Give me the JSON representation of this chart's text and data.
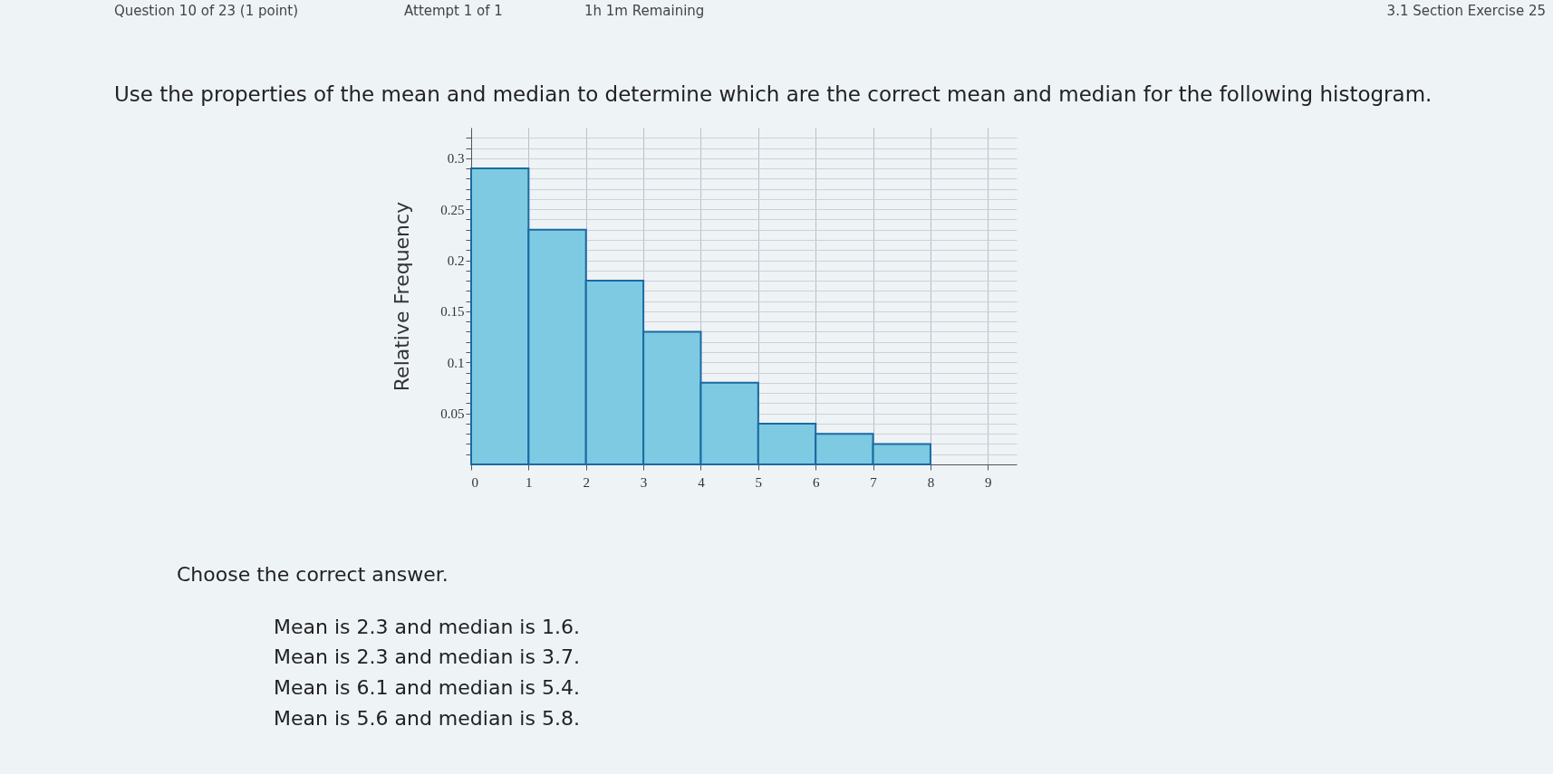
{
  "chart_data": {
    "type": "histogram",
    "title": "Use the properties of the mean and median to determine which are the correct mean and median for the following histogram.",
    "ylabel": "Relative Frequency",
    "bins": [
      0,
      1,
      2,
      3,
      4,
      5,
      6,
      7,
      8
    ],
    "values": [
      0.29,
      0.23,
      0.18,
      0.13,
      0.08,
      0.04,
      0.03,
      0.02
    ],
    "color": "#7ecae2",
    "xlim": [
      0,
      9.5
    ],
    "ylim": [
      0,
      0.33
    ],
    "xticks": [
      0,
      1,
      2,
      3,
      4,
      5,
      6,
      7,
      8,
      9
    ],
    "yticks": [
      {
        "value": 0.01,
        "label": null
      },
      {
        "value": 0.02,
        "label": null
      },
      {
        "value": 0.03,
        "label": null
      },
      {
        "value": 0.04,
        "label": null
      },
      0.05,
      {
        "value": 0.06,
        "label": null
      },
      {
        "value": 0.07,
        "label": null
      },
      {
        "value": 0.08,
        "label": null
      },
      {
        "value": 0.09,
        "label": null
      },
      0.1,
      {
        "value": 0.11,
        "label": null
      },
      {
        "value": 0.12,
        "label": null
      },
      {
        "value": 0.13,
        "label": null
      },
      {
        "value": 0.14,
        "label": null
      },
      0.15,
      {
        "value": 0.16,
        "label": null
      },
      {
        "value": 0.17,
        "label": null
      },
      {
        "value": 0.18,
        "label": null
      },
      {
        "value": 0.19,
        "label": null
      },
      0.2,
      {
        "value": 0.21,
        "label": null
      },
      {
        "value": 0.22,
        "label": null
      },
      {
        "value": 0.23,
        "label": null
      },
      {
        "value": 0.24,
        "label": null
      },
      0.25,
      {
        "value": 0.26,
        "label": null
      },
      {
        "value": 0.27,
        "label": null
      },
      {
        "value": 0.28,
        "label": null
      },
      {
        "value": 0.29,
        "label": null
      },
      0.3,
      {
        "value": 0.31,
        "label": null
      },
      {
        "value": 0.32,
        "label": null
      }
    ],
    "grid": true,
    "annotations": [
      "Question 10 of 23 (1 point)",
      "Attempt 1 of 1",
      "1h 1m Remaining",
      "3.1 Section Exercise 25",
      "Choose the correct answer.",
      "Mean is 2.3 and median is 1.6.",
      "Mean is 2.3 and median is 3.7.",
      "Mean is 6.1 and median is 5.4.",
      "Mean is 5.6 and median is 5.8."
    ]
  }
}
